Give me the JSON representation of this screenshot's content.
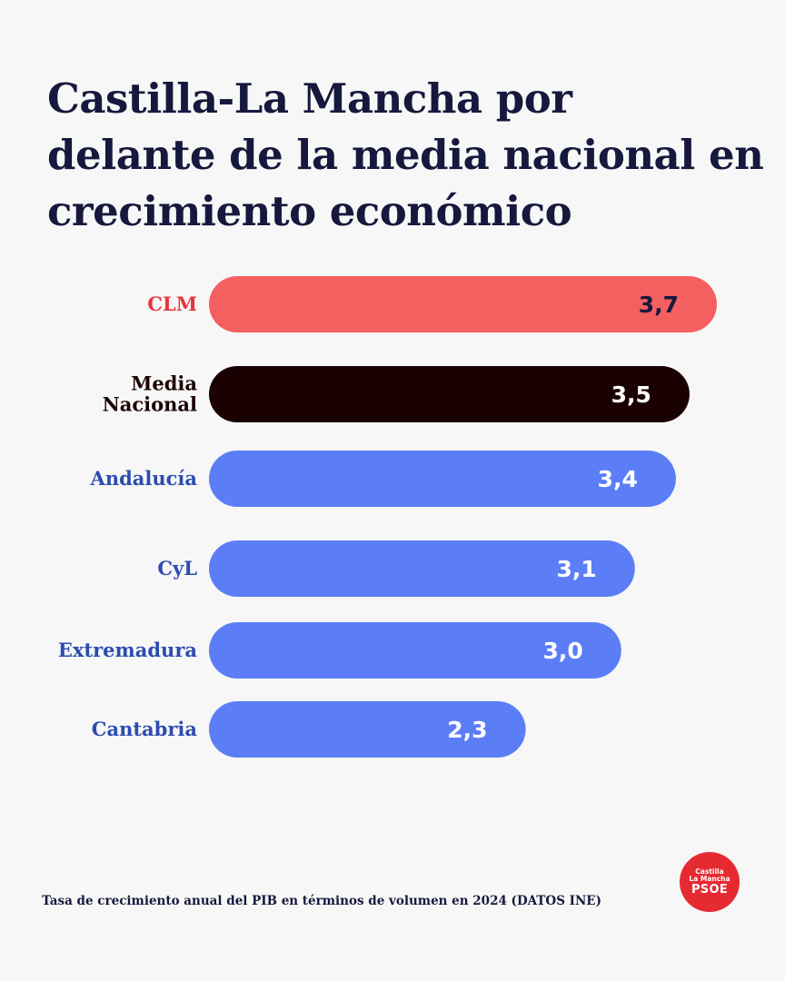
{
  "title": {
    "line1": "Castilla-La Mancha por",
    "line2": "delante de la media nacional en",
    "line3": "crecimiento económico"
  },
  "chart_data": {
    "type": "bar",
    "orientation": "horizontal",
    "categories": [
      "CLM",
      "Media Nacional",
      "Andalucía",
      "CyL",
      "Extremadura",
      "Cantabria"
    ],
    "values": [
      3.7,
      3.5,
      3.4,
      3.1,
      3.0,
      2.3
    ],
    "value_labels": [
      "3,7",
      "3,5",
      "3,4",
      "3,1",
      "3,0",
      "2,3"
    ],
    "category_label_lines": [
      [
        "CLM"
      ],
      [
        "Media",
        "Nacional"
      ],
      [
        "Andalucía"
      ],
      [
        "CyL"
      ],
      [
        "Extremadura"
      ],
      [
        "Cantabria"
      ]
    ],
    "bar_colors": [
      "#f46060",
      "#1a0202",
      "#5b7ef7",
      "#5b7ef7",
      "#5b7ef7",
      "#5b7ef7"
    ],
    "label_colors": [
      "#e8333a",
      "#1a0202",
      "#2d4cb0",
      "#2d4cb0",
      "#2d4cb0",
      "#2d4cb0"
    ],
    "value_colors": [
      "#16183d",
      "#ffffff",
      "#ffffff",
      "#ffffff",
      "#ffffff",
      "#ffffff"
    ],
    "grid": false,
    "axes_visible": false
  },
  "footnote": "Tasa de crecimiento anual del PIB en términos de volumen en 2024 (DATOS INE)",
  "logo": {
    "line1": "Castilla",
    "line2": "La Mancha",
    "line3": "PSOE",
    "color": "#e62a32"
  }
}
